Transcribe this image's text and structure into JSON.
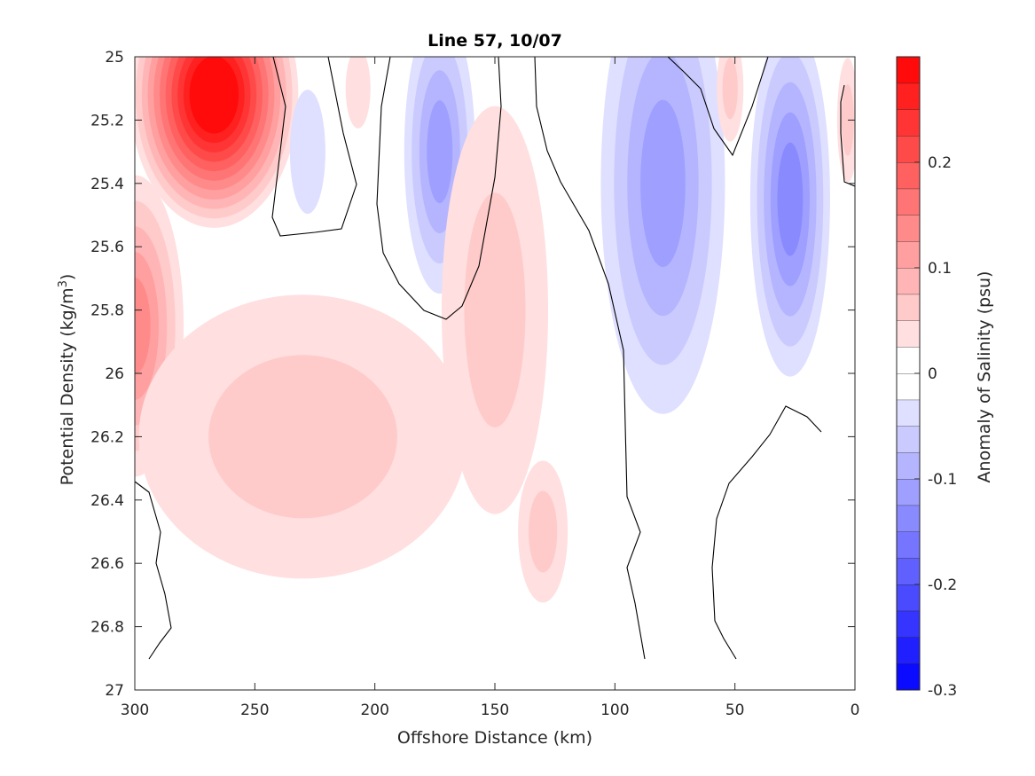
{
  "chart_data": {
    "type": "contour",
    "title": "Line 57, 10/07",
    "xlabel": "Offshore Distance (km)",
    "ylabel_main": "Potential Density (kg/m",
    "ylabel_sup": "3",
    "ylabel_end": ")",
    "xlim": [
      300,
      0
    ],
    "ylim": [
      25,
      27
    ],
    "x_ticks": [
      300,
      250,
      200,
      150,
      100,
      50,
      0
    ],
    "y_ticks": [
      25,
      25.2,
      25.4,
      25.6,
      25.8,
      26,
      26.2,
      26.4,
      26.6,
      26.8,
      27
    ],
    "y_direction": "reversed",
    "colorbar": {
      "label": "Anomaly of Salinity (psu)",
      "range": [
        -0.3,
        0.3
      ],
      "level_step": 0.025,
      "tick_values": [
        0.2,
        0.1,
        0,
        -0.1,
        -0.2,
        -0.3
      ],
      "tick_labels": [
        "0.2",
        "0.1",
        "0",
        "-0.1",
        "-0.2",
        "-0.3"
      ],
      "low_color": "#0000ff",
      "mid_color": "#ffffff",
      "high_color": "#ff0000"
    },
    "features": [
      {
        "name": "surface salty core",
        "x": 267,
        "y": 25.12,
        "value": 0.3
      },
      {
        "name": "deep salty lobe",
        "x": 300,
        "y": 25.85,
        "value": 0.13
      },
      {
        "name": "salty tongue",
        "x": 230,
        "y": 26.2,
        "value": 0.06
      },
      {
        "name": "fresh eddy",
        "x": 173,
        "y": 25.3,
        "value": -0.12
      },
      {
        "name": "salty lens",
        "x": 150,
        "y": 25.8,
        "value": 0.07
      },
      {
        "name": "deep salty lens",
        "x": 130,
        "y": 26.5,
        "value": 0.06
      },
      {
        "name": "fresh eddy",
        "x": 80,
        "y": 25.4,
        "value": -0.12
      },
      {
        "name": "fresh eddy",
        "x": 27,
        "y": 25.45,
        "value": -0.13
      },
      {
        "name": "small fresh patch",
        "x": 228,
        "y": 25.3,
        "value": -0.04
      },
      {
        "name": "small salty patch",
        "x": 52,
        "y": 25.1,
        "value": 0.05
      },
      {
        "name": "small salty patch",
        "x": 207,
        "y": 25.1,
        "value": 0.04
      },
      {
        "name": "small salty patch",
        "x": 3,
        "y": 25.2,
        "value": 0.05
      }
    ]
  }
}
